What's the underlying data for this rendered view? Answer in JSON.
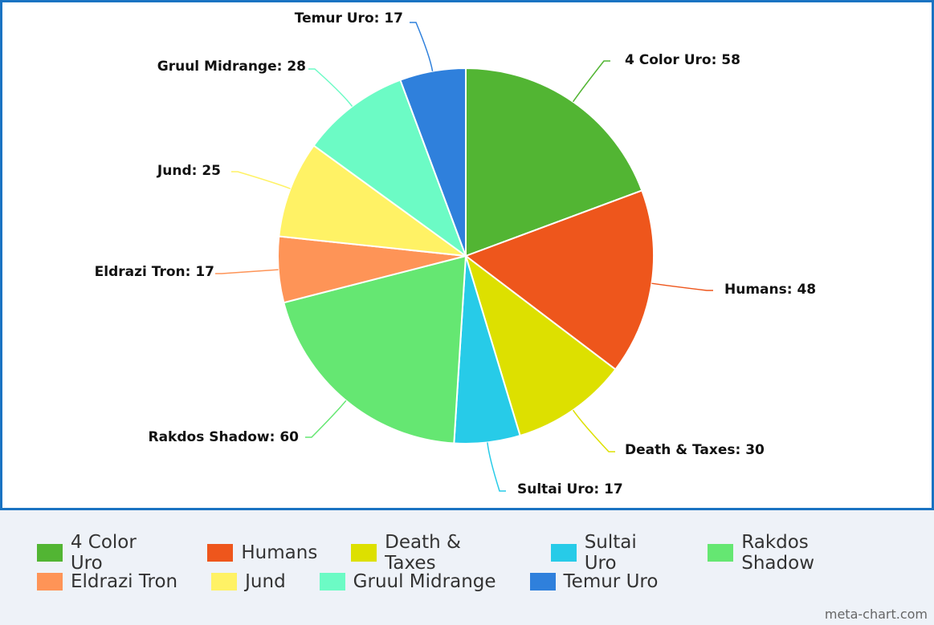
{
  "chart_data": {
    "type": "pie",
    "slices": [
      {
        "name": "4 Color Uro",
        "value": 58,
        "color": "#52b533",
        "label": "4 Color Uro: 58"
      },
      {
        "name": "Humans",
        "value": 48,
        "color": "#ee561c",
        "label": "Humans: 48"
      },
      {
        "name": "Death & Taxes",
        "value": 30,
        "color": "#dde000",
        "label": "Death & Taxes: 30"
      },
      {
        "name": "Sultai Uro",
        "value": 17,
        "color": "#27cbe8",
        "label": "Sultai Uro: 17"
      },
      {
        "name": "Rakdos Shadow",
        "value": 60,
        "color": "#65e772",
        "label": "Rakdos Shadow: 60"
      },
      {
        "name": "Eldrazi Tron",
        "value": 17,
        "color": "#fe9457",
        "label": "Eldrazi Tron: 17"
      },
      {
        "name": "Jund",
        "value": 25,
        "color": "#fff265",
        "label": "Jund: 25"
      },
      {
        "name": "Gruul Midrange",
        "value": 28,
        "color": "#6cfbc5",
        "label": "Gruul Midrange: 28"
      },
      {
        "name": "Temur Uro",
        "value": 17,
        "color": "#2f80dc",
        "label": "Temur Uro: 17"
      }
    ],
    "legend_position": "bottom"
  },
  "watermark": "meta-chart.com"
}
